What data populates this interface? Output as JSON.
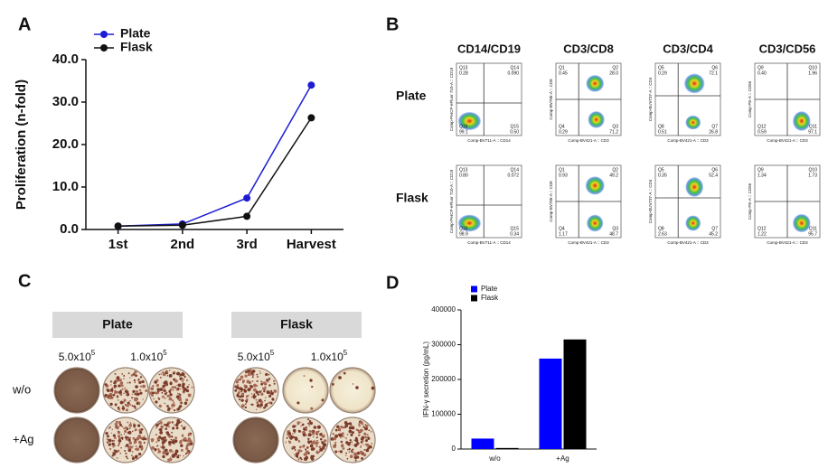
{
  "panel_labels": [
    "A",
    "B",
    "C",
    "D"
  ],
  "chart_data": [
    {
      "type": "line",
      "ylabel": "Proliferation (n-fold)",
      "categories": [
        "1st",
        "2nd",
        "3rd",
        "Harvest"
      ],
      "series": [
        {
          "name": "Plate",
          "color": "#1c1cd4",
          "values": [
            0.8,
            1.3,
            7.4,
            34.0
          ]
        },
        {
          "name": "Flask",
          "color": "#111111",
          "values": [
            0.8,
            1.0,
            3.1,
            26.3
          ]
        }
      ],
      "ylim": [
        0,
        40
      ],
      "yticks": [
        {
          "value": 0,
          "label": "0.0"
        },
        {
          "value": 10,
          "label": "10.0"
        },
        {
          "value": 20,
          "label": "20.0"
        },
        {
          "value": 30,
          "label": "30.0"
        },
        {
          "value": 40,
          "label": "40.0"
        }
      ],
      "legend": "upper left"
    },
    {
      "type": "bar",
      "ylabel": "IFN-γ secretion (pg/mL)",
      "categories": [
        "w/o",
        "+Ag"
      ],
      "series": [
        {
          "name": "Plate",
          "color": "#0000ff",
          "values": [
            30000,
            260000
          ]
        },
        {
          "name": "Flask",
          "color": "#000000",
          "values": [
            3000,
            315000
          ]
        }
      ],
      "ylim": [
        0,
        400000
      ],
      "yticks": [
        0,
        100000,
        200000,
        300000,
        400000
      ],
      "legend": "upper left"
    }
  ],
  "flow": {
    "columns": [
      {
        "title": "CD14/CD19",
        "x_label": "Comp-BV711-A :: CD14",
        "y_label": "Comp-PerCP-eFluor 710-A :: CD19"
      },
      {
        "title": "CD3/CD8",
        "x_label": "Comp-BV421-A :: CD3",
        "y_label": "Comp-BV786-A :: CD8"
      },
      {
        "title": "CD3/CD4",
        "x_label": "Comp-BV421-A :: CD3",
        "y_label": "Comp-BUV737-A :: CD4"
      },
      {
        "title": "CD3/CD56",
        "x_label": "Comp-BV421-A :: CD3",
        "y_label": "Comp-PE-A :: CD56"
      }
    ],
    "rows": [
      {
        "label": "Plate",
        "plots": [
          [
            {
              "gate": "Q13",
              "value": "0.28"
            },
            {
              "gate": "Q14",
              "value": "0.090"
            },
            {
              "gate": "Q16",
              "value": "99.1"
            },
            {
              "gate": "Q15",
              "value": "0.50"
            }
          ],
          [
            {
              "gate": "Q1",
              "value": "0.45"
            },
            {
              "gate": "Q2",
              "value": "28.0"
            },
            {
              "gate": "Q4",
              "value": "0.29"
            },
            {
              "gate": "Q3",
              "value": "71.2"
            }
          ],
          [
            {
              "gate": "Q5",
              "value": "0.29"
            },
            {
              "gate": "Q6",
              "value": "72.1"
            },
            {
              "gate": "Q8",
              "value": "0.51"
            },
            {
              "gate": "Q7",
              "value": "26.8"
            }
          ],
          [
            {
              "gate": "Q9",
              "value": "0.40"
            },
            {
              "gate": "Q10",
              "value": "1.96"
            },
            {
              "gate": "Q12",
              "value": "0.59"
            },
            {
              "gate": "Q11",
              "value": "97.1"
            }
          ]
        ]
      },
      {
        "label": "Flask",
        "plots": [
          [
            {
              "gate": "Q13",
              "value": "0.80"
            },
            {
              "gate": "Q14",
              "value": "0.072"
            },
            {
              "gate": "Q16",
              "value": "98.9"
            },
            {
              "gate": "Q15",
              "value": "0.34"
            }
          ],
          [
            {
              "gate": "Q1",
              "value": "0.93"
            },
            {
              "gate": "Q2",
              "value": "49.2"
            },
            {
              "gate": "Q4",
              "value": "1.17"
            },
            {
              "gate": "Q3",
              "value": "48.7"
            }
          ],
          [
            {
              "gate": "Q5",
              "value": "0.35"
            },
            {
              "gate": "Q6",
              "value": "52.4"
            },
            {
              "gate": "Q8",
              "value": "2.63"
            },
            {
              "gate": "Q7",
              "value": "45.2"
            }
          ],
          [
            {
              "gate": "Q9",
              "value": "1.34"
            },
            {
              "gate": "Q10",
              "value": "1.73"
            },
            {
              "gate": "Q12",
              "value": "1.22"
            },
            {
              "gate": "Q11",
              "value": "95.7"
            }
          ]
        ]
      }
    ]
  },
  "elispot": {
    "groups": [
      {
        "title": "Plate",
        "dilutions": [
          {
            "base": "5.0x10",
            "exp": "5"
          },
          {
            "base": "1.0x10",
            "exp": "5"
          }
        ]
      },
      {
        "title": "Flask",
        "dilutions": [
          {
            "base": "5.0x10",
            "exp": "5"
          },
          {
            "base": "1.0x10",
            "exp": "5"
          }
        ]
      }
    ],
    "rows": [
      "w/o",
      "+Ag"
    ]
  }
}
